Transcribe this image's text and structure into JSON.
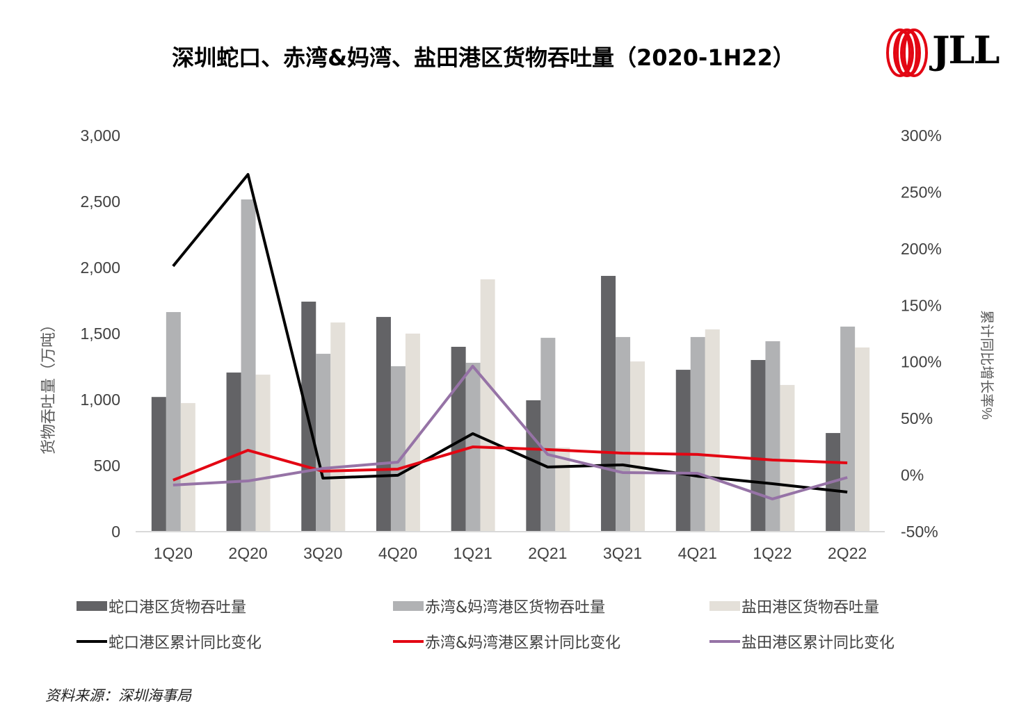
{
  "title": "深圳蛇口、赤湾&妈湾、盐田港区货物吞吐量（2020-1H22）",
  "logo": "JLL",
  "source": "资料来源：深圳海事局",
  "colors": {
    "shekou_bar": "#636366",
    "chiwan_bar": "#b1b2b4",
    "yantian_bar": "#e4e0d9",
    "shekou_line": "#000000",
    "chiwan_line": "#e30613",
    "yantian_line": "#9673a6",
    "logo_red": "#e30613"
  },
  "chart_data": {
    "type": "bar+line",
    "categories": [
      "1Q20",
      "2Q20",
      "3Q20",
      "4Q20",
      "1Q21",
      "2Q21",
      "3Q21",
      "4Q21",
      "1Q22",
      "2Q22"
    ],
    "ylabel": "货物吞吐量（万吨）",
    "y2label": "累计同比增长率%",
    "ylim": [
      0,
      3000
    ],
    "yticks": [
      "0",
      "500",
      "1,000",
      "1,500",
      "2,000",
      "2,500",
      "3,000"
    ],
    "y2lim": [
      -50,
      300
    ],
    "y2ticks": [
      "-50%",
      "0%",
      "50%",
      "100%",
      "150%",
      "200%",
      "250%",
      "300%"
    ],
    "grid": false,
    "legend_placement": "bottom",
    "bar_series": [
      {
        "name": "蛇口港区货物吞吐量",
        "values": [
          1020,
          1205,
          1742,
          1626,
          1400,
          995,
          1937,
          1226,
          1300,
          747
        ]
      },
      {
        "name": "赤湾&妈湾港区货物吞吐量",
        "values": [
          1663,
          2516,
          1347,
          1253,
          1279,
          1468,
          1474,
          1474,
          1442,
          1553
        ]
      },
      {
        "name": "盐田港区货物吞吐量",
        "values": [
          974,
          1189,
          1584,
          1500,
          1911,
          637,
          1289,
          1532,
          1111,
          1395
        ]
      }
    ],
    "line_series": [
      {
        "name": "蛇口港区累计同比变化",
        "values": [
          184.6,
          265.6,
          -2.7,
          -0.2,
          36.6,
          7.1,
          9.0,
          -1.0,
          -7.6,
          -15.0
        ]
      },
      {
        "name": "赤湾&妈湾港区累计同比变化",
        "values": [
          -4.5,
          21.9,
          3.4,
          5.3,
          24.9,
          22.5,
          19.4,
          18.2,
          13.3,
          10.8
        ]
      },
      {
        "name": "盐田港区累计同比变化",
        "values": [
          -8.8,
          -5.2,
          5.9,
          11.4,
          96.2,
          18.2,
          2.2,
          1.6,
          -21.1,
          -2.1
        ]
      }
    ]
  }
}
